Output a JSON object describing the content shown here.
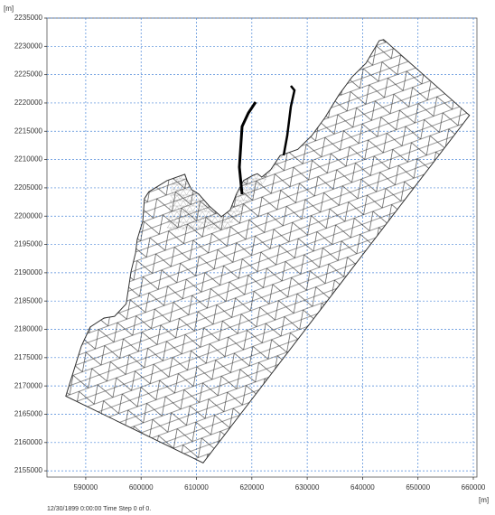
{
  "chart_data": {
    "type": "mesh",
    "y_unit": "[m]",
    "x_unit": "[m]",
    "footer": "12/30/1899 0:00:00  Time Step 0 of 0.",
    "xlim": [
      583000,
      660650
    ],
    "ylim": [
      2153900,
      2235000
    ],
    "xticks": [
      590000,
      600000,
      610000,
      620000,
      630000,
      640000,
      650000,
      660000
    ],
    "yticks": [
      2155000,
      2160000,
      2165000,
      2170000,
      2175000,
      2180000,
      2185000,
      2190000,
      2195000,
      2200000,
      2205000,
      2210000,
      2215000,
      2220000,
      2225000,
      2230000,
      2235000
    ],
    "grid": true,
    "color": "#333333",
    "x": [
      586400,
      589200,
      590800,
      593300,
      595200,
      597300,
      598200,
      599000,
      599300,
      600300,
      600600,
      601400,
      604700,
      607900,
      608300,
      609100,
      610400,
      612300,
      614500,
      616100,
      617200,
      618500,
      620200,
      621000,
      621800,
      623400,
      625100,
      628300,
      630800,
      633200,
      635700,
      638100,
      640600,
      643000,
      643800,
      659300,
      611200
    ],
    "y": [
      2168200,
      2177000,
      2180400,
      2182000,
      2182300,
      2184500,
      2190300,
      2193500,
      2195900,
      2199100,
      2203100,
      2204300,
      2206300,
      2207400,
      2206300,
      2204700,
      2203900,
      2201800,
      2199900,
      2201100,
      2203900,
      2206300,
      2207200,
      2207500,
      2206900,
      2208200,
      2210700,
      2211800,
      2214200,
      2217400,
      2221400,
      2224600,
      2227000,
      2231000,
      2231200,
      2217800,
      2156400
    ]
  }
}
